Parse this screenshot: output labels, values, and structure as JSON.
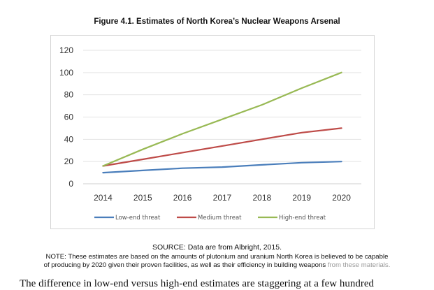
{
  "figure": {
    "title": "Figure 4.1. Estimates of North Korea’s Nuclear Weapons Arsenal",
    "source": "SOURCE: Data are from Albright, 2015.",
    "note_line1": "NOTE: These estimates are based on the amounts of plutonium and uranium North Korea is believed to be capable",
    "note_line2_main": "of producing by 2020 given their proven facilities, as well as their efficiency in building weapons ",
    "note_line2_faded": "from these materials.",
    "body_text_cutoff": "The difference in low-end versus high-end estimates are staggering at a few hundred"
  },
  "chart_data": {
    "type": "line",
    "title": "Figure 4.1. Estimates of North Korea’s Nuclear Weapons Arsenal",
    "xlabel": "",
    "ylabel": "",
    "x": [
      "2014",
      "2015",
      "2016",
      "2017",
      "2018",
      "2019",
      "2020"
    ],
    "ylim": [
      0,
      120
    ],
    "yticks": [
      0,
      20,
      40,
      60,
      80,
      100,
      120
    ],
    "grid": true,
    "legend_position": "bottom",
    "series": [
      {
        "name": "Low-end threat",
        "color": "#4a7ebb",
        "values": [
          10,
          12,
          14,
          15,
          17,
          19,
          20
        ]
      },
      {
        "name": "Medium threat",
        "color": "#be4b48",
        "values": [
          16,
          22,
          28,
          34,
          40,
          46,
          50
        ]
      },
      {
        "name": "High-end threat",
        "color": "#98b954",
        "values": [
          16,
          31,
          45,
          58,
          71,
          86,
          100
        ]
      }
    ]
  }
}
